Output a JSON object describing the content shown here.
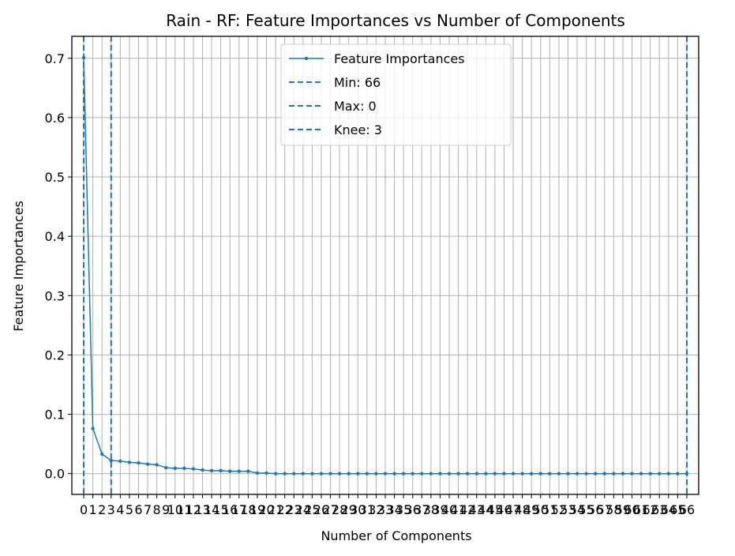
{
  "chart_data": {
    "type": "line",
    "title": "Rain - RF: Feature Importances vs Number of Components",
    "xlabel": "Number of Components",
    "ylabel": "Feature Importances",
    "xlim": [
      -1.3,
      67.3
    ],
    "ylim": [
      -0.035,
      0.737
    ],
    "x_ticks": [
      0,
      1,
      2,
      3,
      4,
      5,
      6,
      7,
      8,
      9,
      10,
      11,
      12,
      13,
      14,
      15,
      16,
      17,
      18,
      19,
      20,
      21,
      22,
      23,
      24,
      25,
      26,
      27,
      28,
      29,
      30,
      31,
      32,
      33,
      34,
      35,
      36,
      37,
      38,
      39,
      40,
      41,
      42,
      43,
      44,
      45,
      46,
      47,
      48,
      49,
      50,
      51,
      52,
      53,
      54,
      55,
      56,
      57,
      58,
      59,
      60,
      61,
      62,
      63,
      64,
      65,
      66
    ],
    "y_ticks": [
      0.0,
      0.1,
      0.2,
      0.3,
      0.4,
      0.5,
      0.6,
      0.7
    ],
    "y_tick_labels": [
      "0.0",
      "0.1",
      "0.2",
      "0.3",
      "0.4",
      "0.5",
      "0.6",
      "0.7"
    ],
    "grid": true,
    "legend_position": "top-center",
    "series": [
      {
        "name": "Feature Importances",
        "color": "#1f77b4",
        "x": [
          0,
          1,
          2,
          3,
          4,
          5,
          6,
          7,
          8,
          9,
          10,
          11,
          12,
          13,
          14,
          15,
          16,
          17,
          18,
          19,
          20,
          21,
          22,
          23,
          24,
          25,
          26,
          27,
          28,
          29,
          30,
          31,
          32,
          33,
          34,
          35,
          36,
          37,
          38,
          39,
          40,
          41,
          42,
          43,
          44,
          45,
          46,
          47,
          48,
          49,
          50,
          51,
          52,
          53,
          54,
          55,
          56,
          57,
          58,
          59,
          60,
          61,
          62,
          63,
          64,
          65,
          66
        ],
        "values": [
          0.701,
          0.076,
          0.033,
          0.022,
          0.021,
          0.019,
          0.018,
          0.016,
          0.015,
          0.01,
          0.009,
          0.009,
          0.008,
          0.006,
          0.005,
          0.005,
          0.004,
          0.004,
          0.004,
          0.001,
          0.001,
          0,
          0,
          0,
          0,
          0,
          0,
          0,
          0,
          0,
          0,
          0,
          0,
          0,
          0,
          0,
          0,
          0,
          0,
          0,
          0,
          0,
          0,
          0,
          0,
          0,
          0,
          0,
          0,
          0,
          0,
          0,
          0,
          0,
          0,
          0,
          0,
          0,
          0,
          0,
          0,
          0,
          0,
          0,
          0,
          0,
          0
        ]
      }
    ],
    "vlines": [
      {
        "name": "Min: 66",
        "x": 66,
        "color": "#1f77b4",
        "style": "dashed"
      },
      {
        "name": "Max: 0",
        "x": 0,
        "color": "#1f77b4",
        "style": "dashed"
      },
      {
        "name": "Knee: 3",
        "x": 3,
        "color": "#1f77b4",
        "style": "dashed"
      }
    ]
  }
}
